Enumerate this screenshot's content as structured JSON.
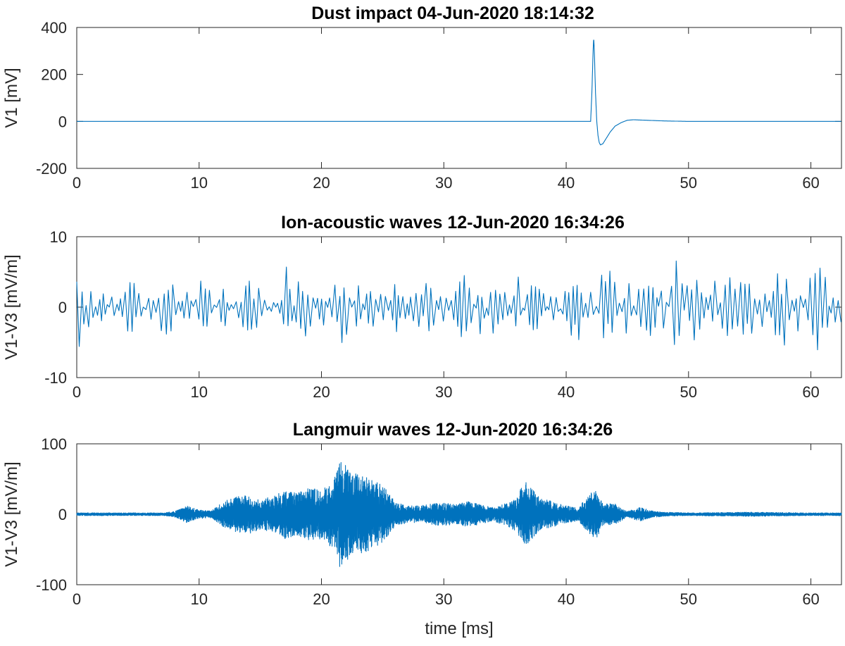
{
  "chart_data": [
    {
      "type": "line",
      "title": "Dust impact 04-Jun-2020 18:14:32",
      "xlabel": "",
      "ylabel": "V1 [mV]",
      "xlim": [
        0,
        62.5
      ],
      "ylim": [
        -200,
        400
      ],
      "xticks": [
        "0",
        "10",
        "20",
        "30",
        "40",
        "50",
        "60"
      ],
      "yticks": [
        "-200",
        "0",
        "200",
        "400"
      ],
      "color": "#0072bd",
      "series": [
        {
          "x": [
            0,
            42.0,
            42.1,
            42.2,
            42.25,
            42.3,
            42.4,
            42.5,
            42.6,
            42.7,
            42.8,
            43.0,
            43.3,
            43.6,
            44.0,
            44.5,
            45.0,
            45.5,
            46.5,
            48.0,
            50.0,
            62.5
          ],
          "y": [
            0,
            0,
            120,
            300,
            358,
            300,
            120,
            0,
            -60,
            -90,
            -100,
            -95,
            -70,
            -45,
            -20,
            -5,
            5,
            7,
            5,
            2,
            0,
            0
          ]
        }
      ]
    },
    {
      "type": "line",
      "title": "Ion-acoustic waves 12-Jun-2020 16:34:26",
      "xlabel": "",
      "ylabel": "V1-V3 [mV/m]",
      "xlim": [
        0,
        62.5
      ],
      "ylim": [
        -10,
        10
      ],
      "xticks": [
        "0",
        "10",
        "20",
        "30",
        "40",
        "50",
        "60"
      ],
      "yticks": [
        "-10",
        "0",
        "10"
      ],
      "color": "#0072bd",
      "series": [
        {
          "x": [
            0,
            0.5,
            1,
            2,
            3,
            4,
            5,
            6,
            7,
            8,
            9,
            10,
            11,
            12,
            13,
            14,
            15,
            16,
            17,
            17.2,
            17.5,
            18,
            19,
            20,
            21,
            22,
            23,
            24,
            25,
            26,
            27,
            28,
            29,
            30,
            31,
            32,
            33,
            34,
            35,
            36,
            37,
            38,
            39,
            40,
            41,
            42,
            43,
            44,
            45,
            46,
            47,
            48,
            49,
            49.3,
            50,
            51,
            52,
            53,
            54,
            55,
            56,
            57,
            58,
            59,
            60,
            61,
            62,
            62.5
          ],
          "y": [
            6.5,
            4,
            -4,
            3,
            -2.5,
            4,
            3,
            -3,
            4.5,
            3.5,
            -4.5,
            4.5,
            2.5,
            -3,
            1.5,
            4,
            3,
            -1.5,
            3,
            7,
            -7,
            5,
            4,
            -3.5,
            4,
            5.5,
            -4.5,
            5.5,
            -4,
            4,
            1,
            3,
            5,
            -5,
            6,
            5,
            -4.5,
            4,
            3.5,
            -5,
            5.5,
            3,
            -4,
            3,
            5.5,
            -5,
            6,
            5,
            -5,
            4,
            6.5,
            -5.5,
            8,
            -8,
            5.5,
            7,
            -6,
            5.5,
            4,
            6,
            -5,
            5.5,
            6,
            -4,
            5.5,
            7.5,
            -6,
            4
          ]
        }
      ]
    },
    {
      "type": "line",
      "title": "Langmuir waves 12-Jun-2020 16:34:26",
      "xlabel": "time [ms]",
      "ylabel": "V1-V3 [mV/m]",
      "xlim": [
        0,
        62.5
      ],
      "ylim": [
        -100,
        100
      ],
      "xticks": [
        "0",
        "10",
        "20",
        "30",
        "40",
        "50",
        "60"
      ],
      "yticks": [
        "-100",
        "0",
        "100"
      ],
      "color": "#0072bd",
      "series": [
        {
          "x": [
            0,
            7,
            8,
            9,
            10,
            11,
            12,
            13,
            14,
            15,
            16,
            17,
            18,
            19,
            20,
            21,
            21.5,
            22,
            22.5,
            23,
            24,
            25,
            26,
            27,
            28,
            29,
            30,
            31,
            32,
            33,
            34,
            35,
            36,
            36.5,
            37,
            37.5,
            38,
            39,
            40,
            41,
            42,
            42.5,
            43,
            44,
            45,
            46,
            47,
            48,
            50,
            55,
            60,
            62.5
          ],
          "y": [
            2,
            2,
            4,
            12,
            6,
            5,
            18,
            25,
            28,
            22,
            25,
            35,
            30,
            38,
            35,
            50,
            75,
            72,
            55,
            60,
            50,
            42,
            18,
            12,
            12,
            15,
            16,
            14,
            18,
            14,
            10,
            15,
            25,
            50,
            40,
            30,
            22,
            18,
            12,
            10,
            30,
            35,
            15,
            15,
            4,
            10,
            5,
            3,
            2,
            3,
            2,
            2
          ]
        }
      ]
    }
  ]
}
